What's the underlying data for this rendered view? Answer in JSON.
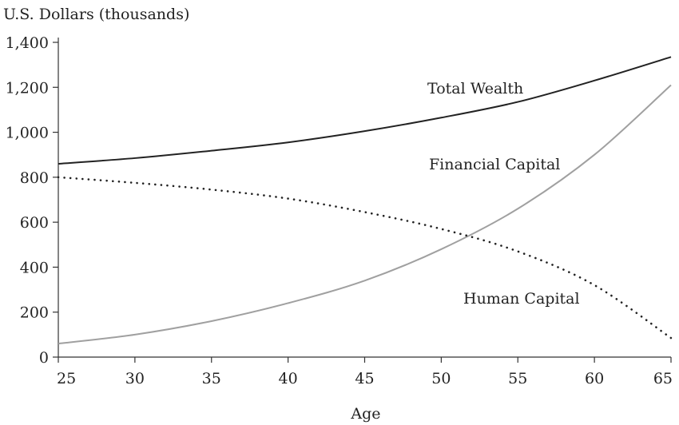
{
  "chart_data": {
    "type": "line",
    "title": "",
    "ylabel": "U.S. Dollars (thousands)",
    "xlabel": "Age",
    "xlim": [
      25,
      65
    ],
    "ylim": [
      0,
      1400
    ],
    "x_ticks": [
      25,
      30,
      35,
      40,
      45,
      50,
      55,
      60,
      65
    ],
    "y_ticks": [
      0,
      200,
      400,
      600,
      800,
      1000,
      1200,
      1400
    ],
    "y_tick_labels": [
      "0",
      "200",
      "400",
      "600",
      "800",
      "1,000",
      "1,200",
      "1,400"
    ],
    "grid": false,
    "series": [
      {
        "name": "Total Wealth",
        "color": "#222222",
        "style": "solid",
        "x": [
          25,
          30,
          35,
          40,
          45,
          50,
          55,
          60,
          65
        ],
        "values": [
          860,
          885,
          918,
          955,
          1005,
          1065,
          1135,
          1230,
          1335
        ]
      },
      {
        "name": "Financial Capital",
        "color": "#a0a0a0",
        "style": "solid",
        "x": [
          25,
          30,
          35,
          40,
          45,
          50,
          55,
          60,
          65
        ],
        "values": [
          60,
          100,
          160,
          240,
          340,
          480,
          660,
          900,
          1210
        ]
      },
      {
        "name": "Human Capital",
        "color": "#222222",
        "style": "dotted",
        "x": [
          25,
          30,
          35,
          40,
          45,
          50,
          55,
          60,
          65
        ],
        "values": [
          800,
          775,
          745,
          705,
          645,
          570,
          470,
          320,
          85
        ]
      }
    ]
  }
}
